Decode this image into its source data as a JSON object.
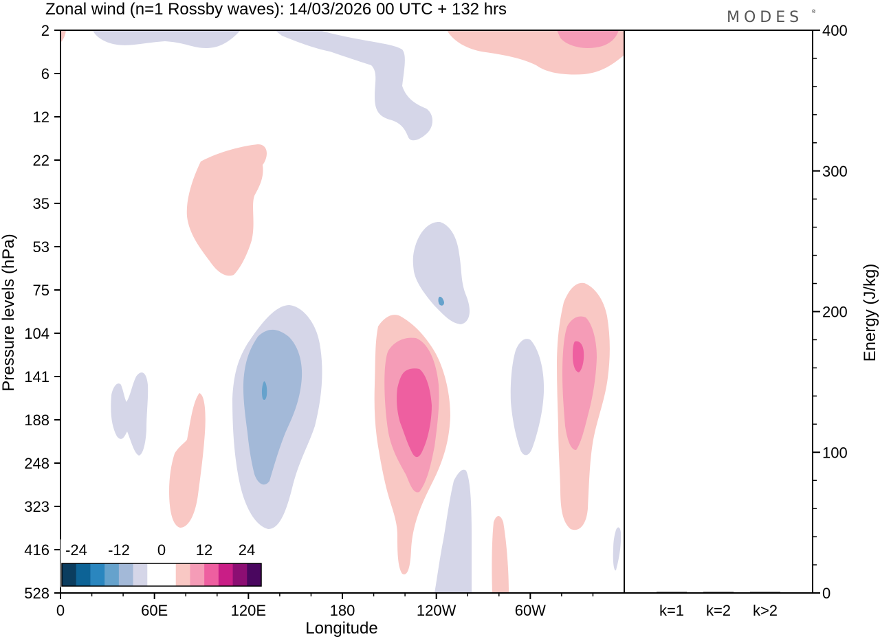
{
  "brand": "MODES",
  "brand_mark": "®",
  "chart_data": {
    "type": "contour",
    "title": "Zonal wind (n=1 Rossby waves):  14/03/2026  00 UTC  + 132 hrs",
    "xlabel": "Longitude",
    "ylabel": "Pressure levels (hPa)",
    "x_ticks": [
      "0",
      "60E",
      "120E",
      "180",
      "120W",
      "60W"
    ],
    "y_levels": [
      "2",
      "6",
      "12",
      "22",
      "35",
      "53",
      "75",
      "104",
      "141",
      "188",
      "248",
      "323",
      "416",
      "528"
    ],
    "colorbar": {
      "tick_labels": [
        "-24",
        "-12",
        "0",
        "12",
        "24"
      ],
      "colors": [
        "#0b3d5f",
        "#0d6396",
        "#2a86bf",
        "#66a2cc",
        "#a3b9d8",
        "#d5d6e8",
        "#ffffff",
        "#ffffff",
        "#f9c8c4",
        "#f59cb7",
        "#ee5fa0",
        "#c91e86",
        "#8c0e73",
        "#4a075f"
      ]
    },
    "energy_panel": {
      "ylabel": "Energy (J/kg)",
      "ylim": [
        0,
        400
      ],
      "y_ticks": [
        "0",
        "100",
        "200",
        "300",
        "400"
      ],
      "categories": [
        "k=1",
        "k=2",
        "k>2"
      ],
      "values": [
        0.2,
        0.4,
        0.4
      ]
    },
    "regions": [
      {
        "name": "neg-blob-0-top",
        "level": -1
      },
      {
        "name": "neg-blob-upper-mid",
        "level": -1
      },
      {
        "name": "neg-blob-upper-right",
        "level": -1
      },
      {
        "name": "pos-blob-top-right",
        "level": 1
      },
      {
        "name": "pos-blob-top-right-inner",
        "level": 2
      },
      {
        "name": "pos-blob-top-left-edge",
        "level": 1
      },
      {
        "name": "pos-blob-upper-left",
        "level": 1
      },
      {
        "name": "neg-blob-lower-left",
        "level": -1
      },
      {
        "name": "pos-blob-lower-left",
        "level": 1
      },
      {
        "name": "neg-blob-120e-outer",
        "level": -1
      },
      {
        "name": "neg-blob-120e-mid",
        "level": -2
      },
      {
        "name": "neg-blob-120e-core",
        "level": -3
      },
      {
        "name": "neg-blob-130w-outer",
        "level": -1
      },
      {
        "name": "neg-blob-130w-core",
        "level": -3
      },
      {
        "name": "pos-blob-110w-outer",
        "level": 1
      },
      {
        "name": "pos-blob-110w-mid",
        "level": 2
      },
      {
        "name": "pos-blob-110w-core",
        "level": 3
      },
      {
        "name": "neg-blob-lower-center",
        "level": -1
      },
      {
        "name": "pos-blob-lower-center",
        "level": 1
      },
      {
        "name": "neg-blob-60w",
        "level": -1
      },
      {
        "name": "pos-blob-30w-outer",
        "level": 1
      },
      {
        "name": "pos-blob-30w-mid",
        "level": 2
      },
      {
        "name": "pos-blob-30w-core",
        "level": 3
      },
      {
        "name": "neg-blob-right-edge",
        "level": -1
      }
    ]
  }
}
